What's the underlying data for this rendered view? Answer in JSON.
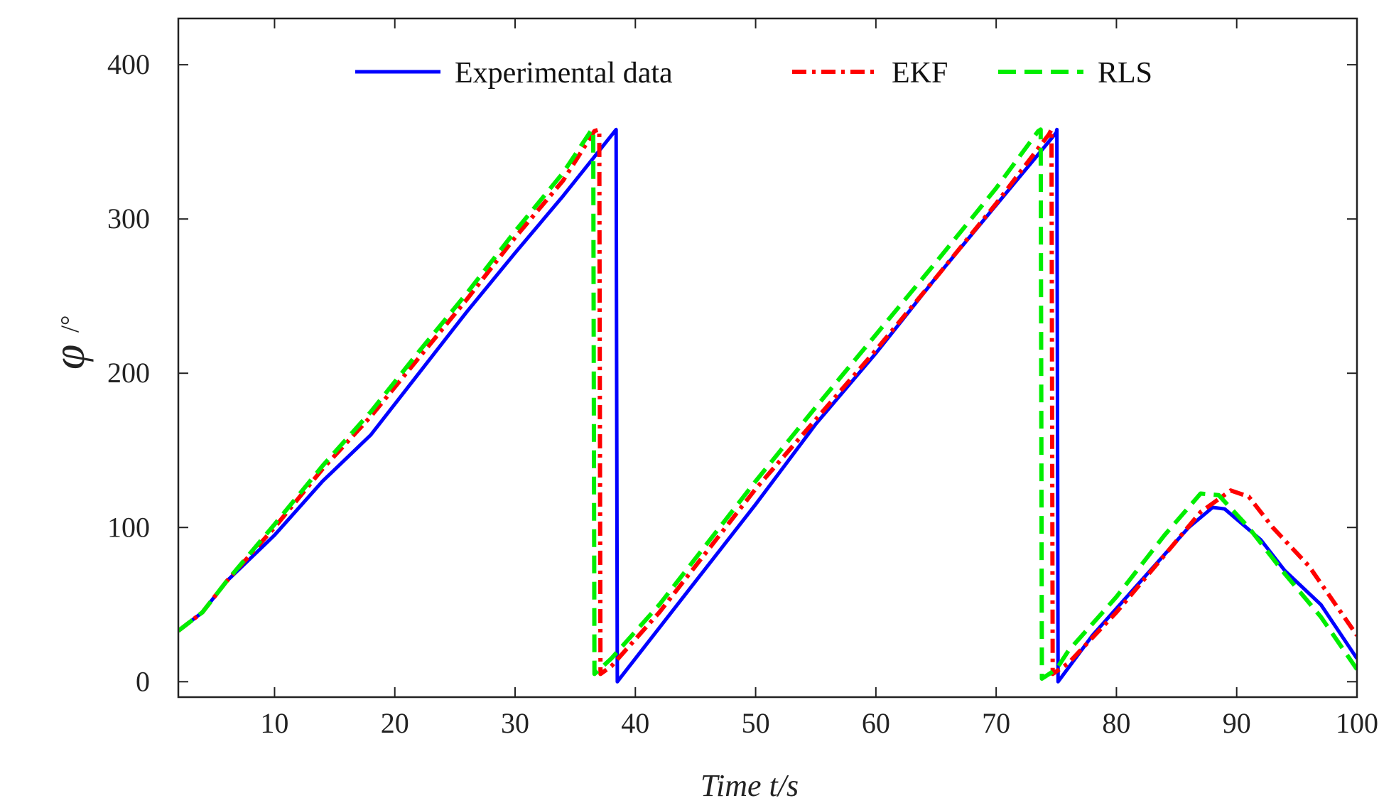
{
  "chart_data": {
    "type": "line",
    "title": "",
    "xlabel": "Time t/s",
    "ylabel": "φ",
    "ylabel_unit": "/°",
    "xlim": [
      2,
      100
    ],
    "ylim": [
      -10,
      430
    ],
    "xticks": [
      10,
      20,
      30,
      40,
      50,
      60,
      70,
      80,
      90,
      100
    ],
    "yticks": [
      0,
      100,
      200,
      300,
      400
    ],
    "legend_position": "top",
    "series": [
      {
        "name": "Experimental data",
        "color": "#0000ff",
        "style": "solid",
        "points": [
          [
            2,
            33
          ],
          [
            4,
            45
          ],
          [
            6,
            65
          ],
          [
            10,
            95
          ],
          [
            14,
            130
          ],
          [
            18,
            160
          ],
          [
            22,
            200
          ],
          [
            26,
            240
          ],
          [
            30,
            278
          ],
          [
            34,
            315
          ],
          [
            38.3,
            357
          ],
          [
            38.4,
            358
          ],
          [
            38.5,
            0
          ],
          [
            40,
            15
          ],
          [
            45,
            65
          ],
          [
            50,
            115
          ],
          [
            55,
            167
          ],
          [
            60,
            213
          ],
          [
            65,
            262
          ],
          [
            70,
            309
          ],
          [
            75,
            356
          ],
          [
            75.05,
            358
          ],
          [
            75.15,
            0
          ],
          [
            78,
            30
          ],
          [
            82,
            65
          ],
          [
            86,
            100
          ],
          [
            88,
            113
          ],
          [
            89,
            112
          ],
          [
            92,
            92
          ],
          [
            94,
            72
          ],
          [
            97,
            50
          ],
          [
            100,
            15
          ]
        ]
      },
      {
        "name": "EKF",
        "color": "#ff0000",
        "style": "dashdot",
        "points": [
          [
            2,
            33
          ],
          [
            4,
            45
          ],
          [
            6,
            65
          ],
          [
            10,
            100
          ],
          [
            14,
            138
          ],
          [
            18,
            172
          ],
          [
            22,
            210
          ],
          [
            26,
            248
          ],
          [
            30,
            288
          ],
          [
            34,
            325
          ],
          [
            36.6,
            357
          ],
          [
            37,
            358
          ],
          [
            37.1,
            5
          ],
          [
            38,
            10
          ],
          [
            42,
            45
          ],
          [
            46,
            85
          ],
          [
            50,
            125
          ],
          [
            55,
            170
          ],
          [
            60,
            215
          ],
          [
            65,
            262
          ],
          [
            70,
            310
          ],
          [
            74.4,
            355
          ],
          [
            74.6,
            358
          ],
          [
            74.7,
            5
          ],
          [
            76,
            12
          ],
          [
            80,
            45
          ],
          [
            84,
            82
          ],
          [
            87,
            110
          ],
          [
            89.5,
            124
          ],
          [
            91,
            120
          ],
          [
            93,
            100
          ],
          [
            96,
            75
          ],
          [
            100,
            30
          ]
        ]
      },
      {
        "name": "RLS",
        "color": "#00ee00",
        "style": "dashed",
        "points": [
          [
            2,
            33
          ],
          [
            4,
            45
          ],
          [
            6,
            65
          ],
          [
            10,
            102
          ],
          [
            14,
            140
          ],
          [
            18,
            175
          ],
          [
            22,
            214
          ],
          [
            26,
            252
          ],
          [
            30,
            292
          ],
          [
            34,
            330
          ],
          [
            36.3,
            357
          ],
          [
            36.5,
            358
          ],
          [
            36.6,
            5
          ],
          [
            38,
            15
          ],
          [
            42,
            50
          ],
          [
            46,
            90
          ],
          [
            50,
            130
          ],
          [
            55,
            178
          ],
          [
            60,
            225
          ],
          [
            65,
            272
          ],
          [
            70,
            320
          ],
          [
            73.5,
            357
          ],
          [
            73.7,
            358
          ],
          [
            73.8,
            2
          ],
          [
            75,
            8
          ],
          [
            76,
            20
          ],
          [
            80,
            55
          ],
          [
            84,
            95
          ],
          [
            87,
            122
          ],
          [
            88.5,
            121
          ],
          [
            91,
            100
          ],
          [
            94,
            70
          ],
          [
            97,
            42
          ],
          [
            100,
            8
          ]
        ]
      }
    ]
  }
}
